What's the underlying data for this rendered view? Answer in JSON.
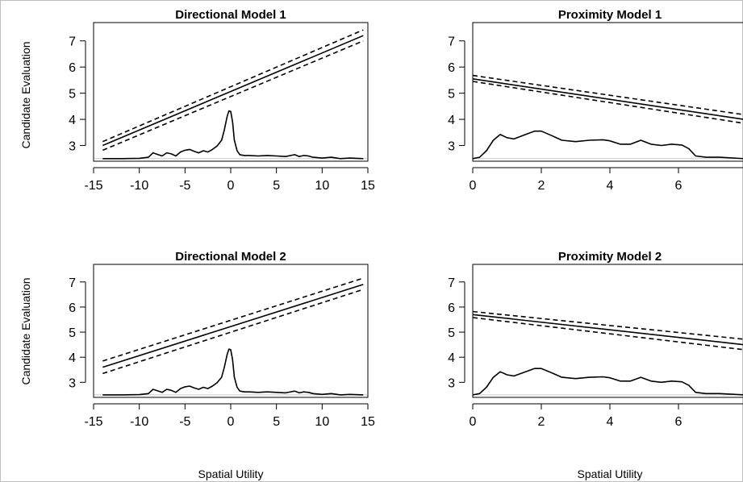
{
  "figure": {
    "ylabel": "Candidate Evaluation",
    "xlabel": "Spatial Utility"
  },
  "chart_data": [
    {
      "type": "line",
      "title": "Directional Model 1",
      "xlim": [
        -15,
        15
      ],
      "ylim": [
        2.4,
        7.7
      ],
      "xticks": [
        -15,
        -10,
        -5,
        0,
        5,
        10,
        15
      ],
      "yticks": [
        3,
        4,
        5,
        6,
        7
      ],
      "baseline": 2.5,
      "series": [
        {
          "role": "fit",
          "style": "solid",
          "x": [
            -14,
            14.5
          ],
          "y": [
            3.0,
            7.2
          ]
        },
        {
          "role": "upper",
          "style": "dashed",
          "x": [
            -14,
            14.5
          ],
          "y": [
            3.15,
            7.42
          ]
        },
        {
          "role": "lower",
          "style": "dashed",
          "x": [
            -14,
            14.5
          ],
          "y": [
            2.82,
            7.0
          ]
        },
        {
          "role": "density",
          "style": "solid",
          "x": [
            -14,
            -12,
            -10,
            -9,
            -8.5,
            -8,
            -7.5,
            -7,
            -6.5,
            -6,
            -5.5,
            -5,
            -4.5,
            -4,
            -3.5,
            -3,
            -2.5,
            -2,
            -1.5,
            -1,
            -0.7,
            -0.4,
            -0.2,
            0,
            0.2,
            0.4,
            0.7,
            1,
            1.5,
            2,
            3,
            4,
            5,
            6,
            7,
            7.5,
            8,
            8.5,
            9,
            10,
            11,
            12,
            13,
            14.5
          ],
          "y": [
            2.5,
            2.5,
            2.51,
            2.55,
            2.72,
            2.66,
            2.6,
            2.72,
            2.68,
            2.6,
            2.75,
            2.82,
            2.85,
            2.78,
            2.72,
            2.8,
            2.75,
            2.85,
            2.98,
            3.2,
            3.6,
            4.1,
            4.32,
            4.3,
            3.9,
            3.2,
            2.8,
            2.65,
            2.62,
            2.62,
            2.6,
            2.62,
            2.6,
            2.58,
            2.65,
            2.58,
            2.62,
            2.6,
            2.55,
            2.52,
            2.55,
            2.5,
            2.52,
            2.5
          ]
        }
      ]
    },
    {
      "type": "line",
      "title": "Proximity Model 1",
      "xlim": [
        0,
        8
      ],
      "ylim": [
        2.4,
        7.7
      ],
      "xticks": [
        0,
        2,
        4,
        6,
        8
      ],
      "yticks": [
        3,
        4,
        5,
        6,
        7
      ],
      "baseline": 2.5,
      "series": [
        {
          "role": "fit",
          "style": "solid",
          "x": [
            0,
            7.9
          ],
          "y": [
            5.55,
            4.0
          ]
        },
        {
          "role": "upper",
          "style": "dashed",
          "x": [
            0,
            7.9
          ],
          "y": [
            5.68,
            4.18
          ]
        },
        {
          "role": "lower",
          "style": "dashed",
          "x": [
            0,
            7.9
          ],
          "y": [
            5.45,
            3.85
          ]
        },
        {
          "role": "density",
          "style": "solid",
          "x": [
            0,
            0.2,
            0.4,
            0.6,
            0.8,
            1.0,
            1.2,
            1.5,
            1.8,
            2.0,
            2.3,
            2.6,
            3.0,
            3.4,
            3.8,
            4.0,
            4.3,
            4.6,
            4.9,
            5.2,
            5.5,
            5.8,
            6.1,
            6.3,
            6.5,
            6.8,
            7.2,
            7.9
          ],
          "y": [
            2.5,
            2.55,
            2.8,
            3.2,
            3.42,
            3.3,
            3.25,
            3.4,
            3.55,
            3.55,
            3.38,
            3.2,
            3.15,
            3.2,
            3.22,
            3.18,
            3.05,
            3.05,
            3.2,
            3.05,
            3.0,
            3.05,
            3.02,
            2.88,
            2.6,
            2.55,
            2.55,
            2.5
          ]
        }
      ]
    },
    {
      "type": "line",
      "title": "Directional Model 2",
      "xlim": [
        -15,
        15
      ],
      "ylim": [
        2.4,
        7.7
      ],
      "xticks": [
        -15,
        -10,
        -5,
        0,
        5,
        10,
        15
      ],
      "yticks": [
        3,
        4,
        5,
        6,
        7
      ],
      "baseline": 2.5,
      "series": [
        {
          "role": "fit",
          "style": "solid",
          "x": [
            -14,
            14.5
          ],
          "y": [
            3.6,
            6.9
          ]
        },
        {
          "role": "upper",
          "style": "dashed",
          "x": [
            -14,
            14.5
          ],
          "y": [
            3.85,
            7.15
          ]
        },
        {
          "role": "lower",
          "style": "dashed",
          "x": [
            -14,
            14.5
          ],
          "y": [
            3.35,
            6.7
          ]
        },
        {
          "role": "density",
          "style": "solid",
          "x": [
            -14,
            -12,
            -10,
            -9,
            -8.5,
            -8,
            -7.5,
            -7,
            -6.5,
            -6,
            -5.5,
            -5,
            -4.5,
            -4,
            -3.5,
            -3,
            -2.5,
            -2,
            -1.5,
            -1,
            -0.7,
            -0.4,
            -0.2,
            0,
            0.2,
            0.4,
            0.7,
            1,
            1.5,
            2,
            3,
            4,
            5,
            6,
            7,
            7.5,
            8,
            8.5,
            9,
            10,
            11,
            12,
            13,
            14.5
          ],
          "y": [
            2.5,
            2.5,
            2.51,
            2.55,
            2.72,
            2.66,
            2.6,
            2.72,
            2.68,
            2.6,
            2.75,
            2.82,
            2.85,
            2.78,
            2.72,
            2.8,
            2.75,
            2.85,
            2.98,
            3.2,
            3.6,
            4.1,
            4.32,
            4.3,
            3.9,
            3.2,
            2.8,
            2.65,
            2.62,
            2.62,
            2.6,
            2.62,
            2.6,
            2.58,
            2.65,
            2.58,
            2.62,
            2.6,
            2.55,
            2.52,
            2.55,
            2.5,
            2.52,
            2.5
          ]
        }
      ]
    },
    {
      "type": "line",
      "title": "Proximity Model 2",
      "xlim": [
        0,
        8
      ],
      "ylim": [
        2.4,
        7.7
      ],
      "xticks": [
        0,
        2,
        4,
        6,
        8
      ],
      "yticks": [
        3,
        4,
        5,
        6,
        7
      ],
      "baseline": 2.5,
      "series": [
        {
          "role": "fit",
          "style": "solid",
          "x": [
            0,
            7.9
          ],
          "y": [
            5.7,
            4.5
          ]
        },
        {
          "role": "upper",
          "style": "dashed",
          "x": [
            0,
            7.9
          ],
          "y": [
            5.82,
            4.72
          ]
        },
        {
          "role": "lower",
          "style": "dashed",
          "x": [
            0,
            7.9
          ],
          "y": [
            5.58,
            4.3
          ]
        },
        {
          "role": "density",
          "style": "solid",
          "x": [
            0,
            0.2,
            0.4,
            0.6,
            0.8,
            1.0,
            1.2,
            1.5,
            1.8,
            2.0,
            2.3,
            2.6,
            3.0,
            3.4,
            3.8,
            4.0,
            4.3,
            4.6,
            4.9,
            5.2,
            5.5,
            5.8,
            6.1,
            6.3,
            6.5,
            6.8,
            7.2,
            7.9
          ],
          "y": [
            2.5,
            2.55,
            2.8,
            3.2,
            3.42,
            3.3,
            3.25,
            3.4,
            3.55,
            3.55,
            3.38,
            3.2,
            3.15,
            3.2,
            3.22,
            3.18,
            3.05,
            3.05,
            3.2,
            3.05,
            3.0,
            3.05,
            3.02,
            2.88,
            2.6,
            2.55,
            2.55,
            2.5
          ]
        }
      ]
    }
  ]
}
